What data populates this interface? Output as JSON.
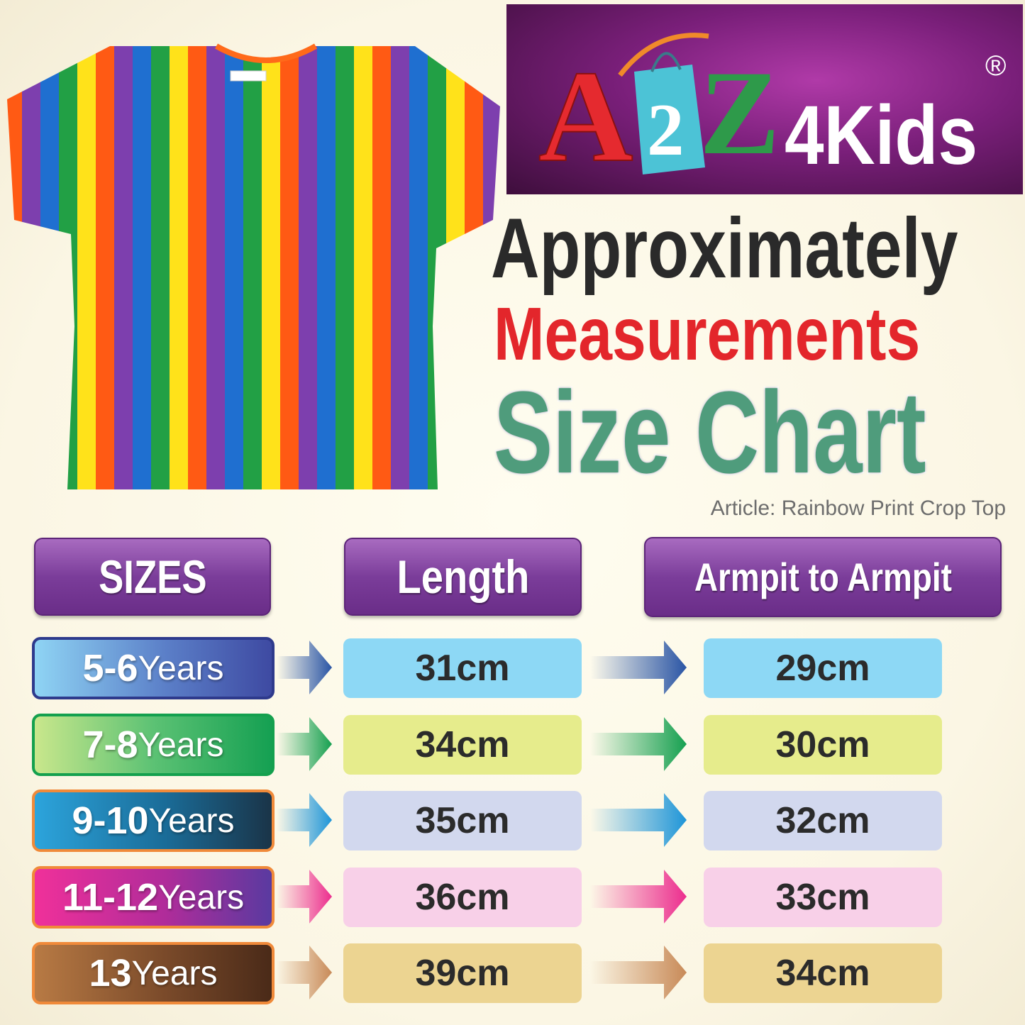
{
  "brand": {
    "logo_text": "A2Z4Kids",
    "registered": "®"
  },
  "title": {
    "line1": "Approximately",
    "line2": "Measurements",
    "line3": "Size Chart"
  },
  "article": "Article: Rainbow Print Crop Top",
  "headers": {
    "sizes": "SIZES",
    "length": "Length",
    "armpit": "Armpit to Armpit"
  },
  "rows": [
    {
      "age": "5-6",
      "unit": "Years",
      "length": "31cm",
      "armpit": "29cm",
      "color": "#4a5bb0"
    },
    {
      "age": "7-8",
      "unit": "Years",
      "length": "34cm",
      "armpit": "30cm",
      "color": "#1fa35a"
    },
    {
      "age": "9-10",
      "unit": "Years",
      "length": "35cm",
      "armpit": "32cm",
      "color": "#1e8fc8"
    },
    {
      "age": "11-12",
      "unit": "Years",
      "length": "36cm",
      "armpit": "33cm",
      "color": "#e8308c"
    },
    {
      "age": "13",
      "unit": "Years",
      "length": "39cm",
      "armpit": "34cm",
      "color": "#a0683a"
    }
  ]
}
